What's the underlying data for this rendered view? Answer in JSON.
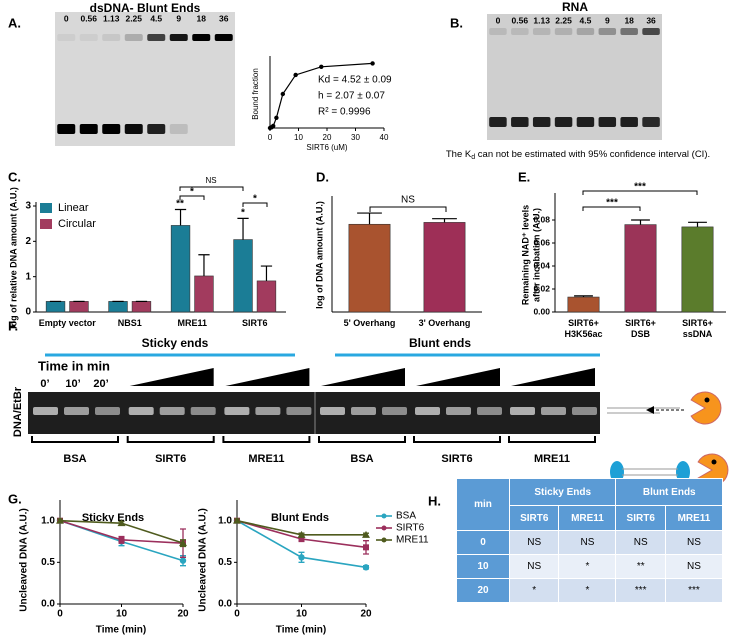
{
  "panel_labels": [
    "A.",
    "B.",
    "C.",
    "D.",
    "E.",
    "F.",
    "G.",
    "H."
  ],
  "gels": {
    "A": {
      "title": "dsDNA- Blunt Ends",
      "lanes": [
        "0",
        "0.56",
        "1.13",
        "2.25",
        "4.5",
        "9",
        "18",
        "36"
      ]
    },
    "B": {
      "title": "RNA",
      "lanes": [
        "0",
        "0.56",
        "1.13",
        "2.25",
        "4.5",
        "9",
        "18",
        "36"
      ],
      "caption": [
        "The K",
        "d",
        " can not be estimated with 95% confidence interval (CI)."
      ]
    },
    "F": {
      "groups": [
        "Sticky ends",
        "Blunt ends"
      ],
      "time_label": "Time in min",
      "times": [
        "0’",
        "10’",
        "20’"
      ],
      "ylabel": "DNA/EtBr",
      "lanes": [
        "BSA",
        "SIRT6",
        "MRE11",
        "BSA",
        "SIRT6",
        "MRE11"
      ]
    }
  },
  "chart_data": [
    {
      "type": "line",
      "x": [
        0,
        0.56,
        1.13,
        2.25,
        4.5,
        9,
        18,
        36
      ],
      "values": [
        0,
        0.01,
        0.03,
        0.15,
        0.5,
        0.78,
        0.9,
        0.95
      ],
      "color": "#000000",
      "marker": "circle",
      "xlim": [
        0,
        40
      ],
      "xticks": [
        0,
        10,
        20,
        30,
        40
      ],
      "ylim": [
        0,
        1
      ],
      "xlabel": "SIRT6 (uM)",
      "ylabel": "Bound fraction",
      "annotations": [
        "Kd = 4.52 ± 0.09",
        "h = 2.07 ± 0.07",
        "R² = 0.9996"
      ]
    },
    {
      "type": "bar",
      "categories": [
        "Empty vector",
        "NBS1",
        "MRE11",
        "SIRT6"
      ],
      "series": [
        {
          "name": "Linear",
          "color": "#1b7d96",
          "values": [
            0.3,
            0.3,
            2.45,
            2.05
          ],
          "errors": [
            0,
            0,
            0.45,
            0.6
          ]
        },
        {
          "name": "Circular",
          "color": "#a23b5e",
          "values": [
            0.3,
            0.3,
            1.02,
            0.88
          ],
          "errors": [
            0,
            0,
            0.6,
            0.42
          ]
        }
      ],
      "ylim": [
        0,
        3
      ],
      "yticks": [
        0,
        1,
        2,
        3
      ],
      "ylabel": "log of relative DNA amount (A.U.)",
      "legend": "upper left",
      "annotations": [
        "**",
        "*",
        "*",
        "*",
        "NS"
      ]
    },
    {
      "type": "bar",
      "categories": [
        "5' Overhang",
        "3' Overhang"
      ],
      "values": [
        0.47,
        0.48
      ],
      "errors": [
        0.06,
        0.02
      ],
      "colors": [
        "#a9532f",
        "#9e2f57"
      ],
      "ylim": [
        0,
        0.6
      ],
      "ylabel": "log of DNA amount (A.U.)",
      "annotations": [
        "NS"
      ]
    },
    {
      "type": "bar",
      "categories": [
        "SIRT6+ H3K56ac",
        "SIRT6+ DSB",
        "SIRT6+ ssDNA"
      ],
      "values": [
        0.013,
        0.076,
        0.074
      ],
      "errors": [
        0.001,
        0.004,
        0.004
      ],
      "colors": [
        "#a9532f",
        "#9b3458",
        "#5b7c2c"
      ],
      "ylim": [
        0,
        0.1
      ],
      "yticks": [
        {
          "value": 0,
          "label": "0.00"
        },
        {
          "value": 0.02,
          "label": "0.02"
        },
        {
          "value": 0.04,
          "label": "0.04"
        },
        {
          "value": 0.06,
          "label": "0.06"
        },
        {
          "value": 0.08,
          "label": "0.08"
        }
      ],
      "ylabel": [
        "Remaining NAD⁺ levels",
        "after incubation (A.U.)"
      ],
      "annotations": [
        "***",
        "***"
      ]
    },
    {
      "type": "line",
      "title": "Sticky Ends",
      "x": [
        0,
        10,
        20
      ],
      "series": [
        {
          "color": "#2aa5c0",
          "marker": "circle",
          "values": [
            1,
            0.75,
            0.52
          ],
          "errors": [
            0.02,
            0.05,
            0.06
          ]
        },
        {
          "color": "#9b2f5c",
          "marker": "square",
          "values": [
            1,
            0.77,
            0.73
          ],
          "errors": [
            0.02,
            0.04,
            0.17
          ]
        },
        {
          "color": "#4f5b1e",
          "marker": "triangle",
          "values": [
            1,
            0.97,
            0.73
          ],
          "errors": [
            0.02,
            0.02,
            0.04
          ]
        }
      ],
      "xlim": [
        0,
        20
      ],
      "xticks": [
        0,
        10,
        20
      ],
      "ylim": [
        0,
        1.2
      ],
      "yticks": [
        {
          "value": 0,
          "label": "0.0"
        },
        {
          "value": 0.5,
          "label": "0.5"
        },
        {
          "value": 1,
          "label": "1.0"
        }
      ],
      "xlabel": "Time (min)",
      "ylabel": "Uncleaved DNA (A.U.)"
    },
    {
      "type": "line",
      "title": "Blunt Ends",
      "x": [
        0,
        10,
        20
      ],
      "series": [
        {
          "name": "BSA",
          "color": "#2aa5c0",
          "marker": "circle",
          "values": [
            1,
            0.56,
            0.44
          ],
          "errors": [
            0.02,
            0.06,
            0.02
          ]
        },
        {
          "name": "SIRT6",
          "color": "#9b2f5c",
          "marker": "square",
          "values": [
            1,
            0.78,
            0.68
          ],
          "errors": [
            0.02,
            0.03,
            0.08
          ]
        },
        {
          "name": "MRE11",
          "color": "#4f5b1e",
          "marker": "triangle",
          "values": [
            1,
            0.83,
            0.83
          ],
          "errors": [
            0.02,
            0.02,
            0.02
          ]
        }
      ],
      "xlim": [
        0,
        20
      ],
      "xticks": [
        0,
        10,
        20
      ],
      "ylim": [
        0,
        1.2
      ],
      "yticks": [
        {
          "value": 0,
          "label": "0.0"
        },
        {
          "value": 0.5,
          "label": "0.5"
        },
        {
          "value": 1,
          "label": "1.0"
        }
      ],
      "xlabel": "Time (min)",
      "ylabel": "Uncleaved DNA (A.U.)",
      "legend": "right"
    }
  ],
  "table": {
    "corner": "min",
    "groups": [
      "Sticky Ends",
      "Blunt Ends"
    ],
    "columns": [
      "SIRT6",
      "MRE11",
      "SIRT6",
      "MRE11"
    ],
    "rows": [
      [
        "0",
        "NS",
        "NS",
        "NS",
        "NS"
      ],
      [
        "10",
        "NS",
        "*",
        "**",
        "NS"
      ],
      [
        "20",
        "*",
        "*",
        "***",
        "***"
      ]
    ]
  }
}
